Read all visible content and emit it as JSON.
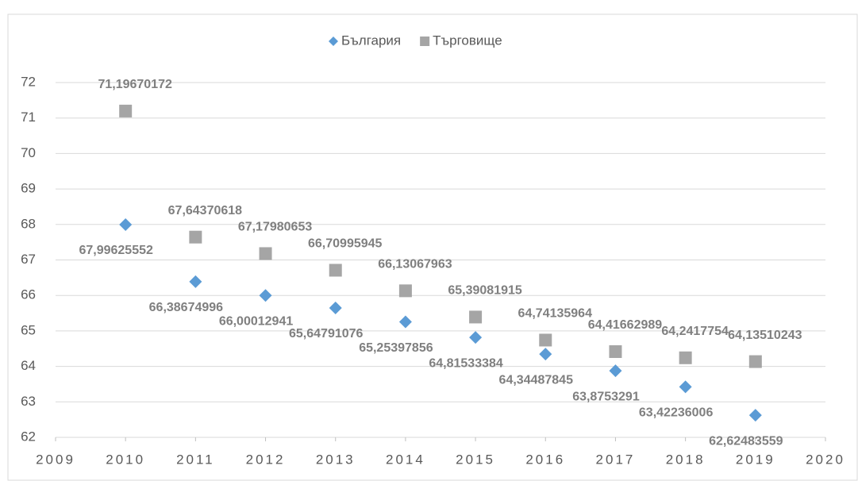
{
  "chart_data": {
    "type": "scatter",
    "series": [
      {
        "name": "България",
        "color": "#5b9bd5",
        "marker": "diamond",
        "x": [
          2010,
          2011,
          2012,
          2013,
          2014,
          2015,
          2016,
          2017,
          2018,
          2019
        ],
        "values": [
          67.99625552,
          66.38674996,
          66.00012941,
          65.64791076,
          65.25397856,
          64.81533384,
          64.34487845,
          63.8753291,
          63.42236006,
          62.62483559
        ],
        "value_labels": [
          "67,99625552",
          "66,38674996",
          "66,00012941",
          "65,64791076",
          "65,25397856",
          "64,81533384",
          "64,34487845",
          "63,8753291",
          "63,42236006",
          "62,62483559"
        ]
      },
      {
        "name": "Търговище",
        "color": "#a5a5a5",
        "marker": "square",
        "x": [
          2010,
          2011,
          2012,
          2013,
          2014,
          2015,
          2016,
          2017,
          2018,
          2019
        ],
        "values": [
          71.19670172,
          67.64370618,
          67.17980653,
          66.70995945,
          66.13067963,
          65.39081915,
          64.74135964,
          64.41662989,
          64.2417754,
          64.13510243
        ],
        "value_labels": [
          "71,19670172",
          "67,64370618",
          "67,17980653",
          "66,70995945",
          "66,13067963",
          "65,39081915",
          "64,74135964",
          "64,41662989",
          "64,2417754",
          "64,13510243"
        ]
      }
    ],
    "xlim": [
      2009,
      2020
    ],
    "xticks": [
      2009,
      2010,
      2011,
      2012,
      2013,
      2014,
      2015,
      2016,
      2017,
      2018,
      2019,
      2020
    ],
    "ylim": [
      62,
      72
    ],
    "yticks": [
      62,
      63,
      64,
      65,
      66,
      67,
      68,
      69,
      70,
      71,
      72
    ],
    "grid": true,
    "legend": "top"
  }
}
